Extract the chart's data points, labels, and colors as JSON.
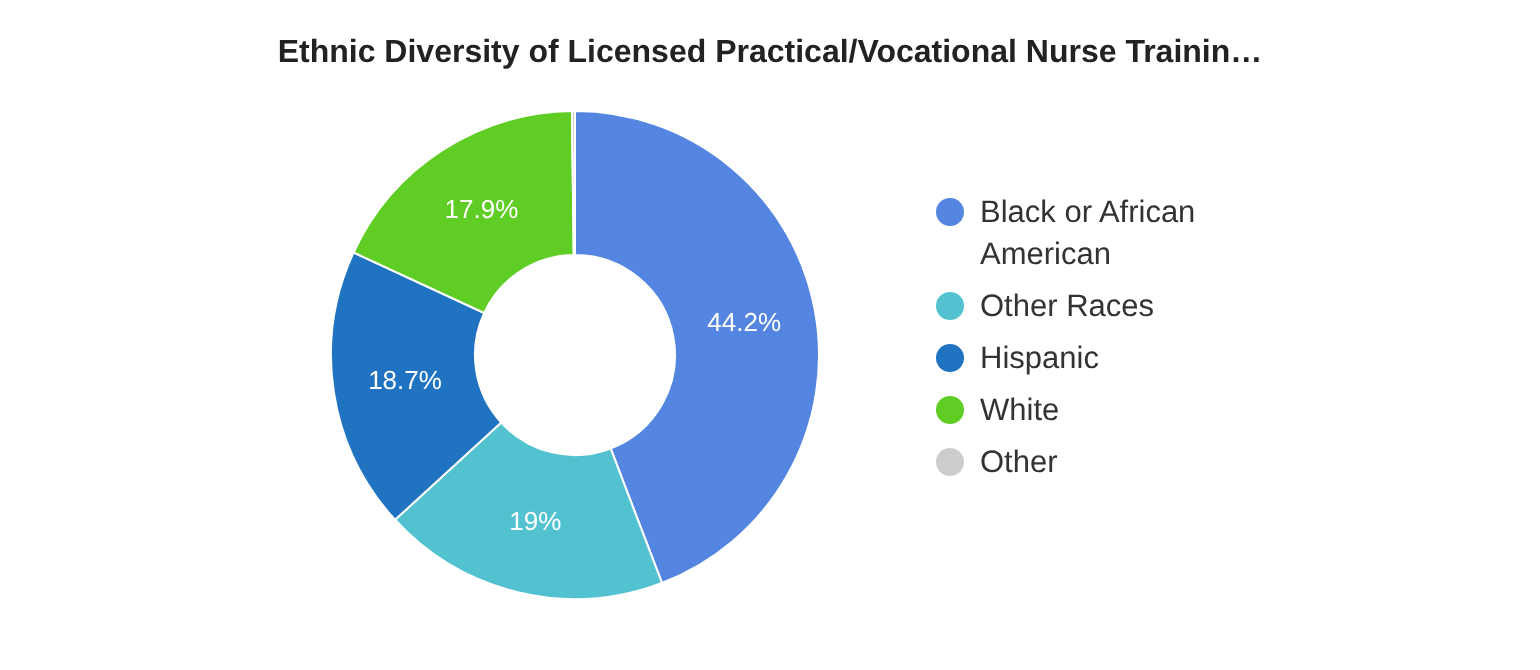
{
  "chart_data": {
    "type": "donut",
    "title": "Ethnic Diversity of Licensed Practical/Vocational Nurse Trainin…",
    "categories": [
      "Black or African American",
      "Other Races",
      "Hispanic",
      "White",
      "Other"
    ],
    "values": [
      44.2,
      19,
      18.7,
      17.9,
      0.2
    ],
    "colors": [
      "#5485e1",
      "#52c2d1",
      "#1f73c1",
      "#5fcd24",
      "#cccccc"
    ],
    "value_labels": [
      "44.2%",
      "19%",
      "18.7%",
      "17.9%",
      null
    ],
    "legend": "right"
  }
}
